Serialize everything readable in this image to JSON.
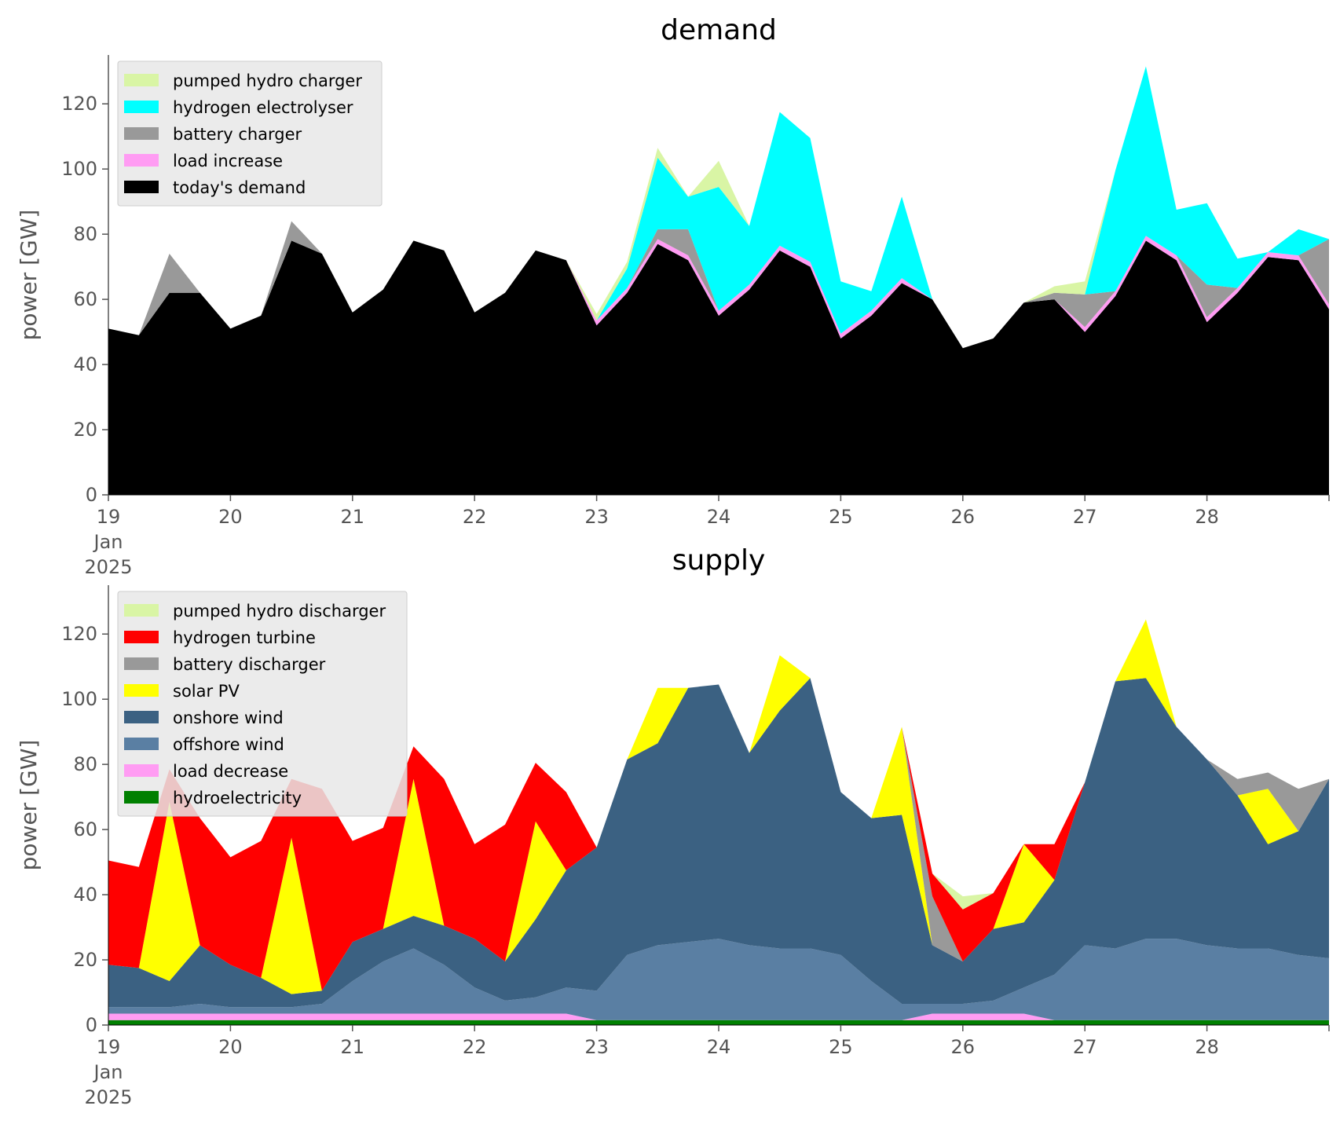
{
  "chart_data": [
    {
      "type": "area",
      "title": "demand",
      "ylabel": "power [GW]",
      "xlabel": "",
      "ylim": [
        0,
        135
      ],
      "yticks": [
        0,
        20,
        40,
        60,
        80,
        100,
        120
      ],
      "x_tick_labels": [
        "19",
        "20",
        "21",
        "22",
        "23",
        "24",
        "25",
        "26",
        "27",
        "28"
      ],
      "x_tick_sublabels": [
        "Jan",
        "2025"
      ],
      "x_range_days": [
        19,
        29
      ],
      "x_unit": "day of Jan 2025",
      "legend_position": "top-left",
      "x": [
        19.0,
        19.25,
        19.5,
        19.75,
        20.0,
        20.25,
        20.5,
        20.75,
        21.0,
        21.25,
        21.5,
        21.75,
        22.0,
        22.25,
        22.5,
        22.75,
        23.0,
        23.25,
        23.5,
        23.75,
        24.0,
        24.25,
        24.5,
        24.75,
        25.0,
        25.25,
        25.5,
        25.75,
        26.0,
        26.25,
        26.5,
        26.75,
        27.0,
        27.25,
        27.5,
        27.75,
        28.0,
        28.25,
        28.5,
        28.75,
        29.0
      ],
      "series": [
        {
          "name": "today's demand",
          "color": "#000000",
          "values": [
            51,
            49,
            62,
            62,
            51,
            55,
            78,
            74,
            56,
            63,
            78,
            75,
            56,
            62,
            75,
            72,
            52,
            62,
            77,
            72,
            55,
            63,
            75,
            70,
            48,
            55,
            65,
            60,
            45,
            48,
            59,
            60,
            50,
            61,
            78,
            72,
            53,
            62,
            73,
            72,
            57
          ]
        },
        {
          "name": "load increase",
          "color": "#ff9cf3",
          "values": [
            0,
            0,
            0,
            0,
            0,
            0,
            0,
            0,
            0,
            0,
            0,
            0,
            0,
            0,
            0,
            0,
            1.5,
            1.5,
            1.5,
            1.5,
            1.5,
            1.5,
            1.5,
            1.5,
            1.5,
            1.5,
            1.5,
            0,
            0,
            0,
            0,
            0,
            1.5,
            1.5,
            1.5,
            1.5,
            1.5,
            1.5,
            1.5,
            1.5,
            1.5
          ]
        },
        {
          "name": "battery charger",
          "color": "#999999",
          "values": [
            0,
            0,
            12,
            0,
            0,
            0,
            6,
            0,
            0,
            0,
            0,
            0,
            0,
            0,
            0,
            0,
            0,
            0,
            3,
            8,
            0,
            0,
            0,
            0,
            0,
            0,
            0,
            0,
            0,
            0,
            0,
            2,
            10,
            0,
            0,
            0,
            10,
            0,
            0,
            0,
            20
          ]
        },
        {
          "name": "hydrogen electrolyser",
          "color": "#00ffff",
          "values": [
            0,
            0,
            0,
            0,
            0,
            0,
            0,
            0,
            0,
            0,
            0,
            0,
            0,
            0,
            0,
            0,
            0,
            6,
            22,
            10,
            38,
            18,
            41,
            38,
            16,
            6,
            25,
            0,
            0,
            0,
            0,
            0,
            0,
            37,
            52,
            14,
            25,
            9,
            0,
            8,
            0
          ]
        },
        {
          "name": "pumped hydro charger",
          "color": "#d9f5a5",
          "values": [
            0,
            0,
            0,
            0,
            0,
            0,
            0,
            0,
            0,
            0,
            0,
            0,
            0,
            0,
            0,
            0,
            2,
            2,
            3,
            0,
            8,
            0,
            0,
            0,
            0,
            0,
            0,
            0,
            0,
            0,
            0,
            2,
            4,
            0,
            0,
            0,
            0,
            0,
            0,
            0,
            0
          ]
        }
      ]
    },
    {
      "type": "area",
      "title": "supply",
      "ylabel": "power [GW]",
      "xlabel": "",
      "ylim": [
        0,
        135
      ],
      "yticks": [
        0,
        20,
        40,
        60,
        80,
        100,
        120
      ],
      "x_tick_labels": [
        "19",
        "20",
        "21",
        "22",
        "23",
        "24",
        "25",
        "26",
        "27",
        "28"
      ],
      "x_tick_sublabels": [
        "Jan",
        "2025"
      ],
      "x_range_days": [
        19,
        29
      ],
      "x_unit": "day of Jan 2025",
      "legend_position": "top-left",
      "x": [
        19.0,
        19.25,
        19.5,
        19.75,
        20.0,
        20.25,
        20.5,
        20.75,
        21.0,
        21.25,
        21.5,
        21.75,
        22.0,
        22.25,
        22.5,
        22.75,
        23.0,
        23.25,
        23.5,
        23.75,
        24.0,
        24.25,
        24.5,
        24.75,
        25.0,
        25.25,
        25.5,
        25.75,
        26.0,
        26.25,
        26.5,
        26.75,
        27.0,
        27.25,
        27.5,
        27.75,
        28.0,
        28.25,
        28.5,
        28.75,
        29.0
      ],
      "series": [
        {
          "name": "hydroelectricity",
          "color": "#008000",
          "values": [
            1.5,
            1.5,
            1.5,
            1.5,
            1.5,
            1.5,
            1.5,
            1.5,
            1.5,
            1.5,
            1.5,
            1.5,
            1.5,
            1.5,
            1.5,
            1.5,
            1.5,
            1.5,
            1.5,
            1.5,
            1.5,
            1.5,
            1.5,
            1.5,
            1.5,
            1.5,
            1.5,
            1.5,
            1.5,
            1.5,
            1.5,
            1.5,
            1.5,
            1.5,
            1.5,
            1.5,
            1.5,
            1.5,
            1.5,
            1.5,
            1.5
          ]
        },
        {
          "name": "load decrease",
          "color": "#ff9cf3",
          "values": [
            2,
            2,
            2,
            2,
            2,
            2,
            2,
            2,
            2,
            2,
            2,
            2,
            2,
            2,
            2,
            2,
            0,
            0,
            0,
            0,
            0,
            0,
            0,
            0,
            0,
            0,
            0,
            2,
            2,
            2,
            2,
            0,
            0,
            0,
            0,
            0,
            0,
            0,
            0,
            0,
            0
          ]
        },
        {
          "name": "offshore wind",
          "color": "#5a7fa3",
          "values": [
            2,
            2,
            2,
            3,
            2,
            2,
            2,
            3,
            10,
            16,
            20,
            15,
            8,
            4,
            5,
            8,
            9,
            20,
            23,
            24,
            25,
            23,
            22,
            22,
            20,
            12,
            5,
            3,
            3,
            4,
            8,
            14,
            23,
            22,
            25,
            25,
            23,
            22,
            22,
            20,
            19
          ]
        },
        {
          "name": "onshore wind",
          "color": "#3b6182",
          "values": [
            13,
            12,
            8,
            18,
            13,
            9,
            4,
            4,
            12,
            10,
            10,
            12,
            15,
            12,
            24,
            36,
            44,
            60,
            62,
            78,
            78,
            59,
            73,
            83,
            50,
            50,
            58,
            18,
            13,
            22,
            20,
            29,
            50,
            82,
            80,
            65,
            57,
            47,
            32,
            38,
            55
          ]
        },
        {
          "name": "solar PV",
          "color": "#ffff00",
          "values": [
            0,
            0,
            55,
            0,
            0,
            0,
            48,
            0,
            0,
            0,
            42,
            0,
            0,
            0,
            30,
            0,
            0,
            0,
            17,
            0,
            0,
            0,
            17,
            0,
            0,
            0,
            27,
            0,
            0,
            0,
            24,
            0,
            0,
            0,
            18,
            0,
            0,
            0,
            17,
            0,
            0
          ]
        },
        {
          "name": "battery discharger",
          "color": "#999999",
          "values": [
            0,
            0,
            0,
            0,
            0,
            0,
            0,
            0,
            0,
            0,
            0,
            0,
            0,
            0,
            0,
            0,
            0,
            0,
            0,
            0,
            0,
            0,
            0,
            0,
            0,
            0,
            0,
            15,
            0,
            0,
            0,
            0,
            0,
            0,
            0,
            0,
            0,
            5,
            5,
            13,
            0
          ]
        },
        {
          "name": "hydrogen turbine",
          "color": "#ff0000",
          "values": [
            32,
            31,
            10,
            39,
            33,
            42,
            18,
            62,
            31,
            31,
            10,
            45,
            29,
            42,
            18,
            24,
            0,
            0,
            0,
            0,
            0,
            0,
            0,
            0,
            0,
            0,
            0,
            7,
            16,
            11,
            0,
            11,
            0,
            0,
            0,
            0,
            0,
            0,
            0,
            0,
            0
          ]
        },
        {
          "name": "pumped hydro discharger",
          "color": "#d9f5a5",
          "values": [
            0,
            0,
            0,
            0,
            0,
            0,
            0,
            0,
            0,
            0,
            0,
            0,
            0,
            0,
            0,
            0,
            0,
            0,
            0,
            0,
            0,
            0,
            0,
            0,
            0,
            0,
            0,
            0,
            4,
            0,
            0,
            0,
            0,
            0,
            0,
            0,
            0,
            0,
            0,
            0,
            0
          ]
        }
      ]
    }
  ]
}
